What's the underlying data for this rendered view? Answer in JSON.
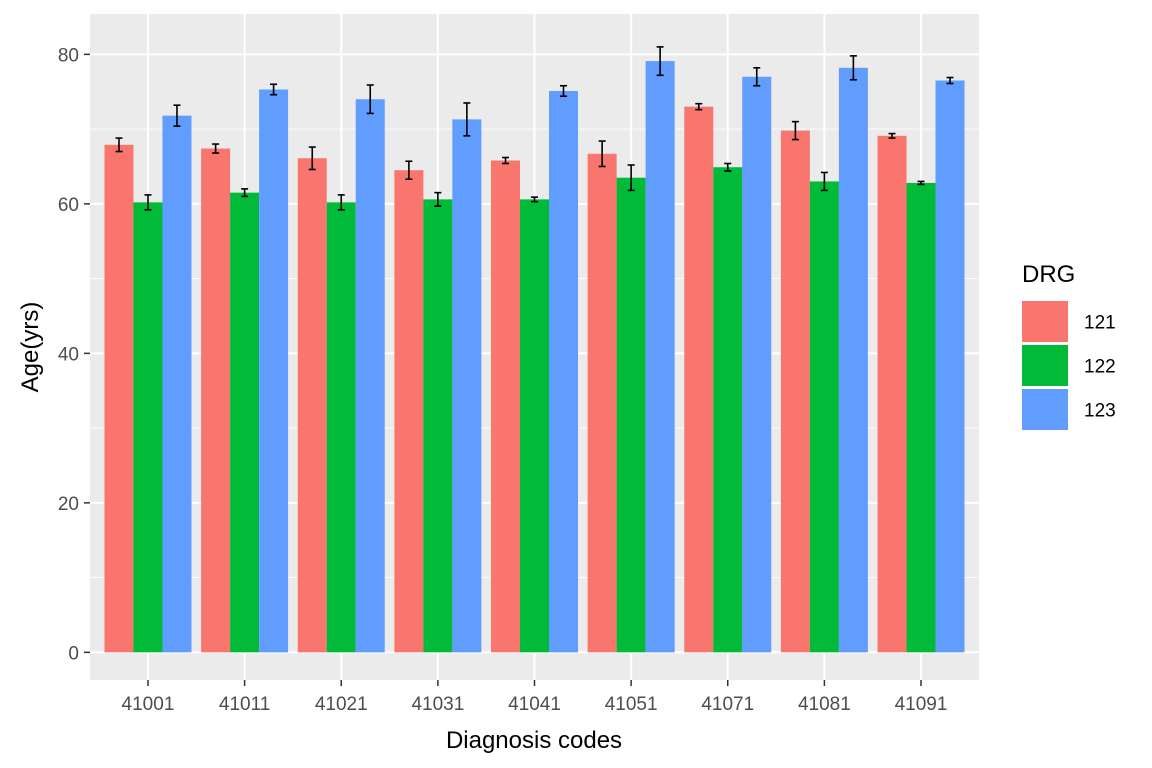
{
  "chart_data": {
    "type": "bar",
    "title": "",
    "xlabel": "Diagnosis codes",
    "ylabel": "Age(yrs)",
    "ylim": [
      -3.7,
      85.4
    ],
    "yticks": [
      0,
      20,
      40,
      60,
      80
    ],
    "ytick_labels": [
      "0",
      "20",
      "40",
      "60",
      "80"
    ],
    "grid": true,
    "legend": {
      "title": "DRG",
      "position": "right"
    },
    "categories": [
      "41001",
      "41011",
      "41021",
      "41031",
      "41041",
      "41051",
      "41071",
      "41081",
      "41091"
    ],
    "series": [
      {
        "name": "121",
        "color": "#F8766D",
        "values": [
          67.9,
          67.4,
          66.1,
          64.5,
          65.8,
          66.7,
          73.0,
          69.8,
          69.1
        ],
        "errors": [
          0.9,
          0.6,
          1.5,
          1.2,
          0.4,
          1.7,
          0.4,
          1.2,
          0.3
        ]
      },
      {
        "name": "122",
        "color": "#00BA38",
        "values": [
          60.2,
          61.5,
          60.2,
          60.6,
          60.6,
          63.5,
          64.9,
          63.0,
          62.8
        ],
        "errors": [
          1.0,
          0.5,
          1.0,
          0.9,
          0.3,
          1.7,
          0.5,
          1.2,
          0.2
        ]
      },
      {
        "name": "123",
        "color": "#619CFF",
        "values": [
          71.8,
          75.3,
          74.0,
          71.3,
          75.1,
          79.1,
          77.0,
          78.2,
          76.5
        ],
        "errors": [
          1.4,
          0.7,
          1.9,
          2.2,
          0.7,
          1.9,
          1.2,
          1.6,
          0.4
        ]
      }
    ]
  },
  "colors": {
    "panel_background": "#EBEBEB",
    "grid_major": "#FFFFFF",
    "tick": "#333333",
    "error_bar": "#000000"
  }
}
